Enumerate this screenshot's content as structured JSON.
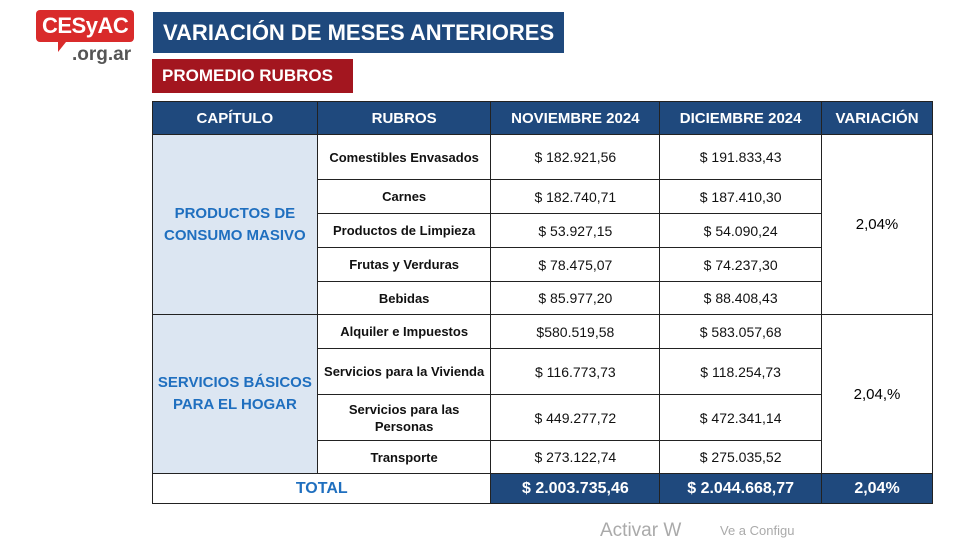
{
  "logo": {
    "name": "CESyAC",
    "domain": ".org.ar"
  },
  "title": "VARIACIÓN DE MESES ANTERIORES",
  "subtitle": "PROMEDIO RUBROS",
  "headers": [
    "CAPÍTULO",
    "RUBROS",
    "NOVIEMBRE 2024",
    "DICIEMBRE 2024",
    "VARIACIÓN"
  ],
  "groups": [
    {
      "chapter": "PRODUCTOS DE CONSUMO MASIVO",
      "variation": "2,04%",
      "rows": [
        {
          "rubro": "Comestibles Envasados",
          "nov": "$ 182.921,56",
          "dic": "$ 191.833,43"
        },
        {
          "rubro": "Carnes",
          "nov": "$ 182.740,71",
          "dic": "$ 187.410,30"
        },
        {
          "rubro": "Productos de Limpieza",
          "nov": "$ 53.927,15",
          "dic": "$ 54.090,24"
        },
        {
          "rubro": "Frutas y Verduras",
          "nov": "$ 78.475,07",
          "dic": "$ 74.237,30"
        },
        {
          "rubro": "Bebidas",
          "nov": "$ 85.977,20",
          "dic": "$ 88.408,43"
        }
      ]
    },
    {
      "chapter": "SERVICIOS BÁSICOS PARA EL HOGAR",
      "variation": "2,04,%",
      "rows": [
        {
          "rubro": "Alquiler e Impuestos",
          "nov": "$580.519,58",
          "dic": "$ 583.057,68"
        },
        {
          "rubro": "Servicios para la Vivienda",
          "nov": "$ 116.773,73",
          "dic": "$ 118.254,73"
        },
        {
          "rubro": "Servicios para las Personas",
          "nov": "$ 449.277,72",
          "dic": "$ 472.341,14"
        },
        {
          "rubro": "Transporte",
          "nov": "$ 273.122,74",
          "dic": "$ 275.035,52"
        }
      ]
    }
  ],
  "total": {
    "label": "TOTAL",
    "nov": "$ 2.003.735,46",
    "dic": "$ 2.044.668,77",
    "variation": "2,04%"
  },
  "watermark": {
    "line1": "Activar W",
    "line2": "Ve a Configu"
  }
}
